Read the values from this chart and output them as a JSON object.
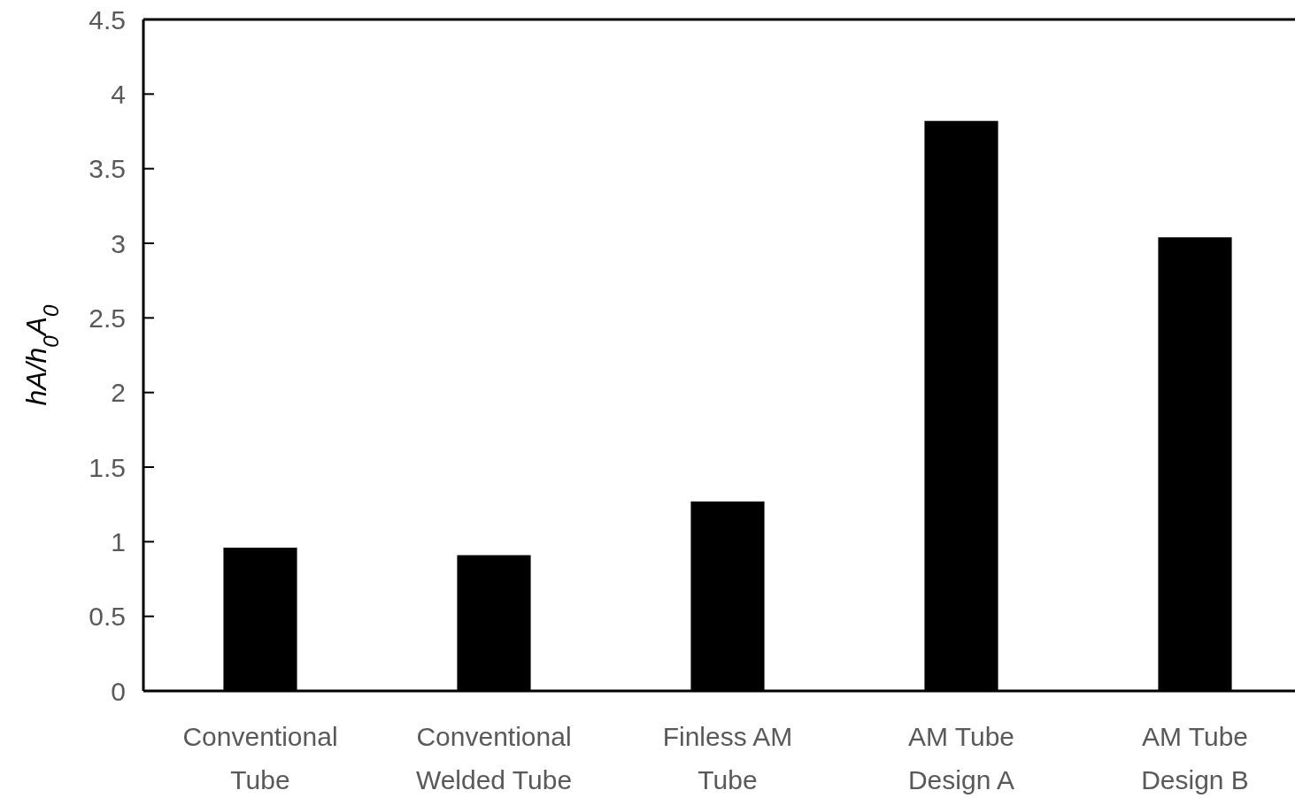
{
  "chart_data": {
    "type": "bar",
    "ylabel": "hA/h$_{0}$A$_{0}$",
    "categories": [
      "Conventional Tube",
      "Conventional Welded Tube",
      "Finless AM Tube",
      "AM Tube Design A",
      "AM Tube Design B"
    ],
    "values": [
      0.96,
      0.91,
      1.27,
      3.82,
      3.04
    ],
    "color": "#000000",
    "ylim": [
      0,
      4.5
    ],
    "yticks": [
      0,
      0.5,
      1,
      1.5,
      2,
      2.5,
      3,
      3.5,
      4,
      4.5
    ],
    "grid": false
  }
}
